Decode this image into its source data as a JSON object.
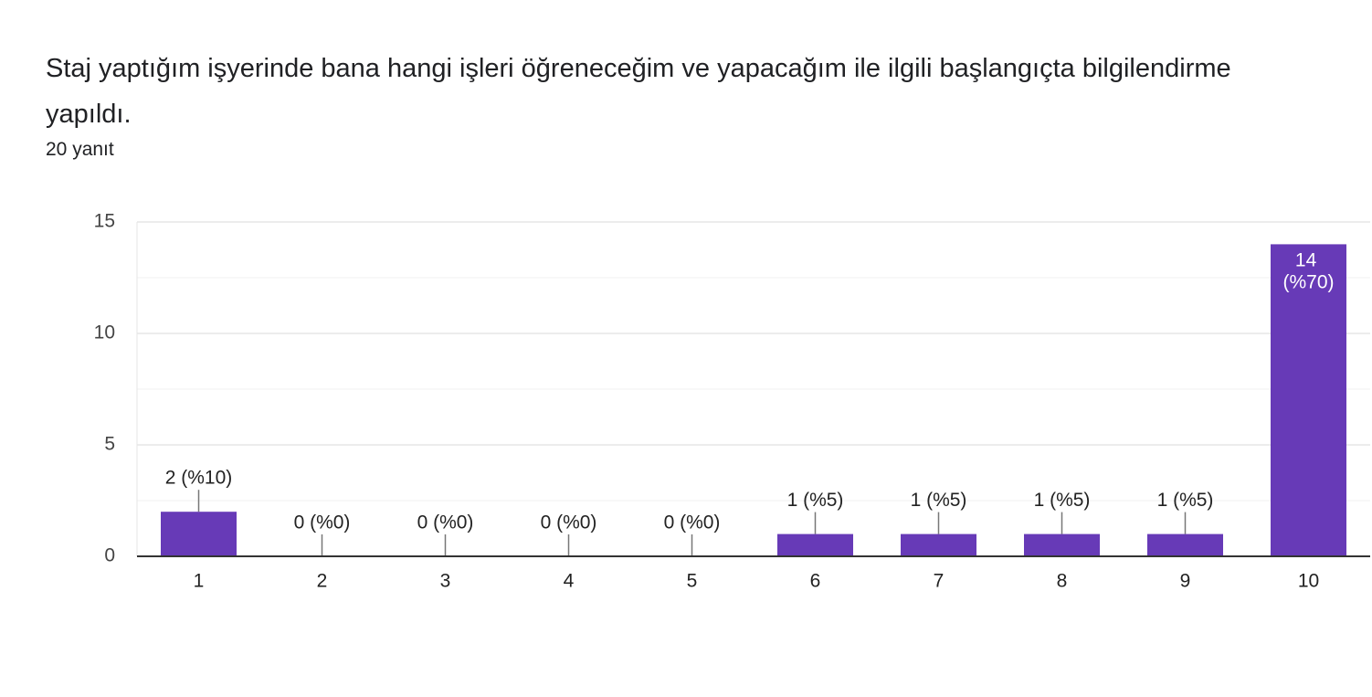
{
  "chart_data": {
    "type": "bar",
    "title": "Staj yaptığım işyerinde bana hangi işleri öğreneceğim ve yapacağım  ile ilgili başlangıçta bilgilendirme yapıldı.",
    "subtitle": "20 yanıt",
    "categories": [
      "1",
      "2",
      "3",
      "4",
      "5",
      "6",
      "7",
      "8",
      "9",
      "10"
    ],
    "values": [
      2,
      0,
      0,
      0,
      0,
      1,
      1,
      1,
      1,
      14
    ],
    "value_labels": [
      "2 (%10)",
      "0 (%0)",
      "0 (%0)",
      "0 (%0)",
      "0 (%0)",
      "1 (%5)",
      "1 (%5)",
      "1 (%5)",
      "1 (%5)",
      "14 (%70)"
    ],
    "color": "#673ab7",
    "ylim": [
      0,
      15
    ],
    "yticks": [
      0,
      5,
      10,
      15
    ],
    "grid": true
  }
}
